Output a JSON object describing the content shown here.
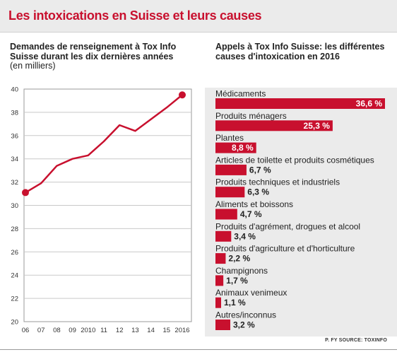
{
  "title": "Les intoxications en Suisse et leurs causes",
  "left_chart_title": "Demandes de renseignement à Tox Info Suisse durant les dix dernières années",
  "left_chart_unit": "(en milliers)",
  "right_chart_title": "Appels à Tox Info Suisse: les différentes causes d'intoxication en 2016",
  "source": "P. FY SOURCE: TOXINFO",
  "colors": {
    "accent": "#c8102e",
    "panel": "#ebebeb",
    "grid": "#c9c9c9"
  },
  "chart_data": [
    {
      "type": "line",
      "title": "Demandes de renseignement à Tox Info Suisse durant les dix dernières années",
      "ylabel": "(en milliers)",
      "x": [
        "06",
        "07",
        "08",
        "09",
        "2010",
        "11",
        "12",
        "13",
        "14",
        "15",
        "2016"
      ],
      "values": [
        31.1,
        31.9,
        33.4,
        34.0,
        34.3,
        35.5,
        36.9,
        36.4,
        37.4,
        38.4,
        39.5
      ],
      "ylim": [
        20,
        40
      ],
      "yticks": [
        20,
        22,
        24,
        26,
        28,
        30,
        32,
        34,
        36,
        38,
        40
      ],
      "grid": true
    },
    {
      "type": "bar",
      "orientation": "horizontal",
      "title": "Appels à Tox Info Suisse: les différentes causes d'intoxication en 2016",
      "categories": [
        "Médicaments",
        "Produits ménagers",
        "Plantes",
        "Articles de toilette et produits cosmétiques",
        "Produits techniques et industriels",
        "Aliments et boissons",
        "Produits d'agrément, drogues et alcool",
        "Produits d'agriculture et d'horticulture",
        "Champignons",
        "Animaux venimeux",
        "Autres/inconnus"
      ],
      "values": [
        36.6,
        25.3,
        8.8,
        6.7,
        6.3,
        4.7,
        3.4,
        2.2,
        1.7,
        1.1,
        3.2
      ],
      "labels": [
        "36,6 %",
        "25,3 %",
        "8,8 %",
        "6,7 %",
        "6,3 %",
        "4,7 %",
        "3,4 %",
        "2,2 %",
        "1,7 %",
        "1,1 %",
        "3,2 %"
      ],
      "unit": "%"
    }
  ]
}
